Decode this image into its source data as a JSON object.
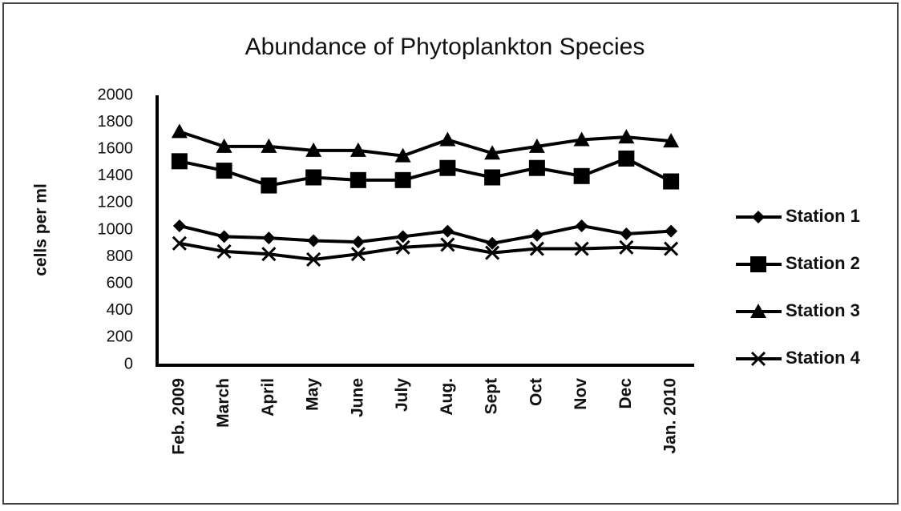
{
  "chart_data": {
    "type": "line",
    "title": "Abundance of Phytoplankton  Species",
    "y_label": "cells per ml",
    "categories": [
      "Feb. 2009",
      "March",
      "April",
      "May",
      "June",
      "July",
      "Aug.",
      "Sept",
      "Oct",
      "Nov",
      "Dec",
      "Jan. 2010"
    ],
    "series": [
      {
        "name": "Station 1",
        "color": "#000000",
        "marker": "diamond",
        "values": [
          1030,
          950,
          940,
          920,
          910,
          950,
          990,
          900,
          960,
          1030,
          970,
          990
        ]
      },
      {
        "name": "Station 2",
        "color": "#000000",
        "marker": "square",
        "values": [
          1510,
          1440,
          1330,
          1390,
          1370,
          1370,
          1460,
          1390,
          1460,
          1400,
          1530,
          1360
        ]
      },
      {
        "name": "Station 3",
        "color": "#000000",
        "marker": "triangle",
        "values": [
          1730,
          1620,
          1620,
          1590,
          1590,
          1550,
          1670,
          1570,
          1620,
          1670,
          1690,
          1660
        ]
      },
      {
        "name": "Station 4",
        "color": "#000000",
        "marker": "x",
        "values": [
          900,
          840,
          820,
          780,
          820,
          870,
          890,
          830,
          860,
          860,
          870,
          860
        ]
      }
    ],
    "ylim": [
      0,
      2000
    ],
    "yticks": [
      0,
      200,
      400,
      600,
      800,
      1000,
      1200,
      1400,
      1600,
      1800,
      2000
    ],
    "grid": false,
    "legend": "right"
  }
}
